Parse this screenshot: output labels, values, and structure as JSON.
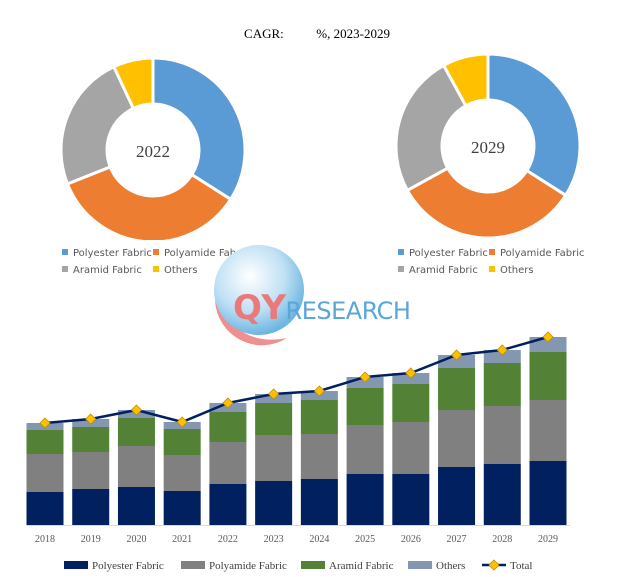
{
  "title": {
    "cagr_label": "CAGR:",
    "period": "%, 2023-2029"
  },
  "colors": {
    "polyester": "#5b9bd5",
    "polyamide": "#ed7d31",
    "aramid": "#a5a5a5",
    "others": "#ffc000",
    "bar_polyester": "#002060",
    "bar_polyamide": "#808080",
    "bar_aramid": "#538135",
    "bar_others": "#8497b0",
    "total_line": "#002060",
    "total_marker": "#ffc000"
  },
  "donut_legend": [
    "Polyester Fabric",
    "Polyamide Fabric",
    "Aramid Fabric",
    "Others"
  ],
  "watermark": {
    "text_a": "QY",
    "text_b": "RESEARCH"
  },
  "chart_data": [
    {
      "type": "pie",
      "title": "2022",
      "categories": [
        "Polyester Fabric",
        "Polyamide Fabric",
        "Aramid Fabric",
        "Others"
      ],
      "values": [
        34,
        35,
        24,
        7
      ]
    },
    {
      "type": "pie",
      "title": "2029",
      "categories": [
        "Polyester Fabric",
        "Polyamide Fabric",
        "Aramid Fabric",
        "Others"
      ],
      "values": [
        34,
        33,
        25,
        8
      ]
    },
    {
      "type": "bar",
      "stacked": true,
      "categories": [
        "2018",
        "2019",
        "2020",
        "2021",
        "2022",
        "2023",
        "2024",
        "2025",
        "2026",
        "2027",
        "2028",
        "2029"
      ],
      "series": [
        {
          "name": "Polyester Fabric",
          "values": [
            33,
            36,
            38,
            34,
            41,
            44,
            46,
            51,
            51,
            58,
            61,
            64
          ]
        },
        {
          "name": "Polyamide Fabric",
          "values": [
            38,
            37,
            41,
            36,
            42,
            46,
            45,
            49,
            52,
            57,
            58,
            61
          ]
        },
        {
          "name": "Aramid Fabric",
          "values": [
            24,
            25,
            28,
            26,
            30,
            32,
            34,
            37,
            38,
            42,
            43,
            48
          ]
        },
        {
          "name": "Others",
          "values": [
            7,
            8,
            8,
            7,
            9,
            9,
            9,
            11,
            11,
            13,
            13,
            15
          ]
        }
      ],
      "line_series": {
        "name": "Total",
        "values": [
          102,
          106,
          115,
          103,
          122,
          131,
          134,
          148,
          152,
          170,
          175,
          188
        ]
      },
      "ylim": [
        0,
        190
      ],
      "grid": false,
      "legend": "bottom"
    }
  ]
}
